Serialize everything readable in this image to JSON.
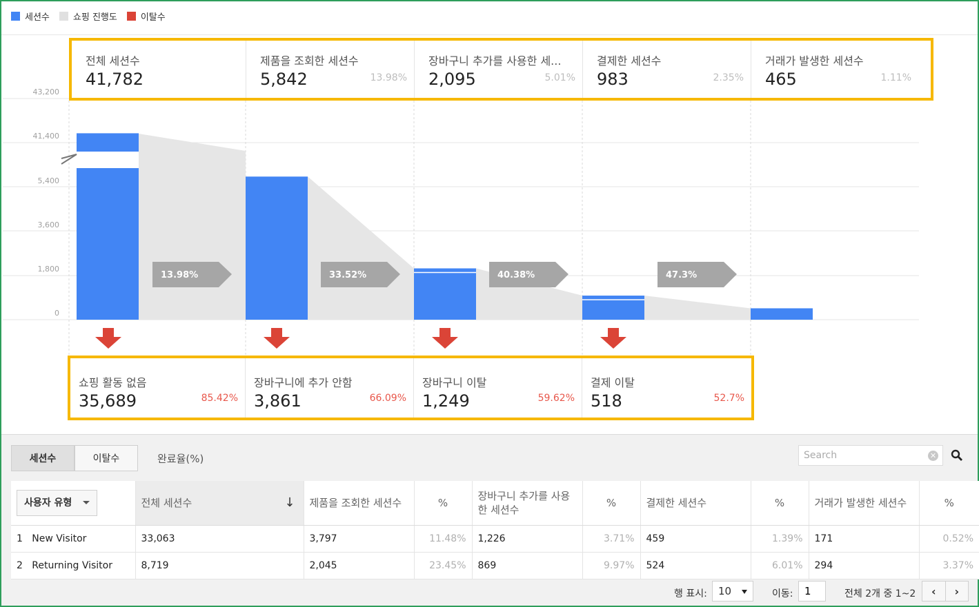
{
  "legend": [
    {
      "label": "세션수",
      "color": "#4285f4"
    },
    {
      "label": "쇼핑 진행도",
      "color": "#e0e0e0"
    },
    {
      "label": "이탈수",
      "color": "#db4437"
    }
  ],
  "chart_data": {
    "type": "bar",
    "y_ticks": [
      "43,200",
      "41,400",
      "5,400",
      "3,600",
      "1,800",
      "0"
    ],
    "axis_break": true,
    "categories": [
      "전체 세션수",
      "제품을 조회한 세션수",
      "장바구니 추가를 사용한 세...",
      "결제한 세션수",
      "거래가 발생한 세션수"
    ],
    "values": [
      41782,
      5842,
      2095,
      983,
      465
    ],
    "transition_rates": [
      "13.98%",
      "33.52%",
      "40.38%",
      "47.3%"
    ],
    "colors": {
      "bar": "#4285f4",
      "progress": "#e6e6e6",
      "arrow": "#a6a6a6",
      "drop_arrow": "#db4437"
    }
  },
  "stages": [
    {
      "label": "전체 세션수",
      "value": "41,782",
      "pct": ""
    },
    {
      "label": "제품을 조회한 세션수",
      "value": "5,842",
      "pct": "13.98%"
    },
    {
      "label": "장바구니 추가를 사용한 세...",
      "value": "2,095",
      "pct": "5.01%"
    },
    {
      "label": "결제한 세션수",
      "value": "983",
      "pct": "2.35%"
    },
    {
      "label": "거래가 발생한 세션수",
      "value": "465",
      "pct": "1.11%"
    }
  ],
  "drops": [
    {
      "label": "쇼핑 활동 없음",
      "value": "35,689",
      "pct": "85.42%"
    },
    {
      "label": "장바구니에 추가 안함",
      "value": "3,861",
      "pct": "66.09%"
    },
    {
      "label": "장바구니 이탈",
      "value": "1,249",
      "pct": "59.62%"
    },
    {
      "label": "결제 이탈",
      "value": "518",
      "pct": "52.7%"
    }
  ],
  "tabs": {
    "sessions": "세션수",
    "exits": "이탈수",
    "completion": "완료율(%)"
  },
  "search": {
    "placeholder": "Search"
  },
  "table": {
    "dimension": "사용자 유형",
    "headers": [
      "전체 세션수",
      "제품을 조회한 세션수",
      "%",
      "장바구니 추가를 사용한 세션수",
      "%",
      "결제한 세션수",
      "%",
      "거래가 발생한 세션수",
      "%"
    ],
    "rows": [
      {
        "idx": "1",
        "type": "New Visitor",
        "cells": [
          "33,063",
          "3,797",
          "11.48%",
          "1,226",
          "3.71%",
          "459",
          "1.39%",
          "171",
          "0.52%"
        ]
      },
      {
        "idx": "2",
        "type": "Returning Visitor",
        "cells": [
          "8,719",
          "2,045",
          "23.45%",
          "869",
          "9.97%",
          "524",
          "6.01%",
          "294",
          "3.37%"
        ]
      }
    ]
  },
  "footer": {
    "rows_label": "행 표시:",
    "rows_value": "10",
    "goto_label": "이동:",
    "goto_value": "1",
    "range": "전체 2개 중 1~2"
  }
}
